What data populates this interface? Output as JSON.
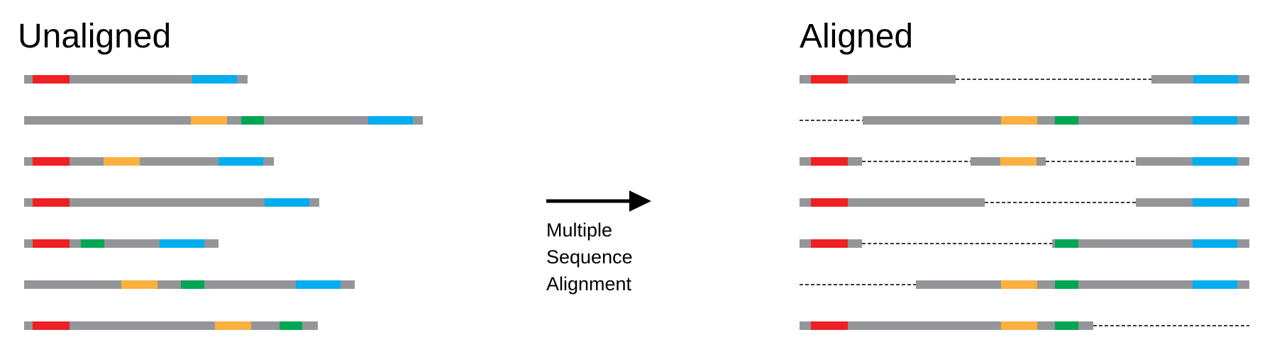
{
  "unaligned": {
    "title": "Unaligned",
    "sequences": [
      [
        [
          "gray",
          0,
          12
        ],
        [
          "red",
          12,
          52
        ],
        [
          "gray",
          64,
          173
        ],
        [
          "blue",
          237,
          63
        ],
        [
          "gray",
          300,
          15
        ]
      ],
      [
        [
          "gray",
          0,
          235
        ],
        [
          "orange",
          235,
          51
        ],
        [
          "gray",
          286,
          20
        ],
        [
          "green",
          306,
          32
        ],
        [
          "gray",
          338,
          147
        ],
        [
          "blue",
          485,
          63
        ],
        [
          "gray",
          548,
          14
        ]
      ],
      [
        [
          "gray",
          0,
          12
        ],
        [
          "red",
          12,
          52
        ],
        [
          "gray",
          64,
          48
        ],
        [
          "orange",
          112,
          51
        ],
        [
          "gray",
          163,
          111
        ],
        [
          "blue",
          274,
          63
        ],
        [
          "gray",
          337,
          15
        ]
      ],
      [
        [
          "gray",
          0,
          12
        ],
        [
          "red",
          12,
          52
        ],
        [
          "gray",
          64,
          275
        ],
        [
          "blue",
          339,
          63
        ],
        [
          "gray",
          402,
          14
        ]
      ],
      [
        [
          "gray",
          0,
          12
        ],
        [
          "red",
          12,
          52
        ],
        [
          "gray",
          64,
          16
        ],
        [
          "green",
          80,
          33
        ],
        [
          "gray",
          113,
          78
        ],
        [
          "blue",
          191,
          63
        ],
        [
          "gray",
          254,
          20
        ]
      ],
      [
        [
          "gray",
          0,
          137
        ],
        [
          "orange",
          137,
          51
        ],
        [
          "gray",
          188,
          33
        ],
        [
          "green",
          221,
          33
        ],
        [
          "gray",
          254,
          129
        ],
        [
          "blue",
          383,
          63
        ],
        [
          "gray",
          446,
          20
        ]
      ],
      [
        [
          "gray",
          0,
          12
        ],
        [
          "red",
          12,
          52
        ],
        [
          "gray",
          64,
          205
        ],
        [
          "orange",
          269,
          51
        ],
        [
          "gray",
          320,
          40
        ],
        [
          "green",
          360,
          32
        ],
        [
          "gray",
          392,
          22
        ]
      ]
    ]
  },
  "aligned": {
    "title": "Aligned",
    "sequences": [
      [
        [
          "gray",
          0,
          16
        ],
        [
          "red",
          16,
          52
        ],
        [
          "gray",
          68,
          152
        ],
        [
          "gap",
          220,
          276
        ],
        [
          "gray",
          496,
          59
        ],
        [
          "blue",
          555,
          63
        ],
        [
          "gray",
          618,
          16
        ]
      ],
      [
        [
          "gap",
          0,
          89
        ],
        [
          "gray",
          89,
          195
        ],
        [
          "orange",
          284,
          51
        ],
        [
          "gray",
          335,
          25
        ],
        [
          "green",
          360,
          33
        ],
        [
          "gray",
          393,
          161
        ],
        [
          "blue",
          554,
          63
        ],
        [
          "gray",
          617,
          17
        ]
      ],
      [
        [
          "gray",
          0,
          16
        ],
        [
          "red",
          16,
          52
        ],
        [
          "gray",
          68,
          20
        ],
        [
          "gap",
          88,
          153
        ],
        [
          "gray",
          241,
          42
        ],
        [
          "orange",
          283,
          51
        ],
        [
          "gray",
          334,
          13
        ],
        [
          "gap",
          347,
          127
        ],
        [
          "gray",
          474,
          80
        ],
        [
          "blue",
          554,
          63
        ],
        [
          "gray",
          617,
          17
        ]
      ],
      [
        [
          "gray",
          0,
          16
        ],
        [
          "red",
          16,
          52
        ],
        [
          "gray",
          68,
          193
        ],
        [
          "gap",
          261,
          213
        ],
        [
          "gray",
          474,
          80
        ],
        [
          "blue",
          554,
          63
        ],
        [
          "gray",
          617,
          17
        ]
      ],
      [
        [
          "gray",
          0,
          16
        ],
        [
          "red",
          16,
          52
        ],
        [
          "gray",
          68,
          20
        ],
        [
          "gap",
          88,
          268
        ],
        [
          "gray",
          356,
          4
        ],
        [
          "green",
          360,
          33
        ],
        [
          "gray",
          393,
          161
        ],
        [
          "blue",
          554,
          63
        ],
        [
          "gray",
          617,
          17
        ]
      ],
      [
        [
          "gap",
          0,
          164
        ],
        [
          "gray",
          164,
          120
        ],
        [
          "orange",
          284,
          51
        ],
        [
          "gray",
          335,
          25
        ],
        [
          "green",
          360,
          33
        ],
        [
          "gray",
          393,
          161
        ],
        [
          "blue",
          554,
          63
        ],
        [
          "gray",
          617,
          17
        ]
      ],
      [
        [
          "gray",
          0,
          16
        ],
        [
          "red",
          16,
          52
        ],
        [
          "gray",
          68,
          216
        ],
        [
          "orange",
          284,
          51
        ],
        [
          "gray",
          335,
          25
        ],
        [
          "green",
          360,
          33
        ],
        [
          "gray",
          393,
          21
        ],
        [
          "gap",
          414,
          220
        ]
      ]
    ]
  },
  "arrow": {
    "label_lines": [
      "Multiple",
      "Sequence",
      "Alignment"
    ]
  },
  "colors": {
    "gray": "#939598",
    "red": "#ee2024",
    "orange": "#fbb040",
    "green": "#00a651",
    "blue": "#00aeef",
    "gap": "#231f20",
    "arrow": "#000000"
  }
}
